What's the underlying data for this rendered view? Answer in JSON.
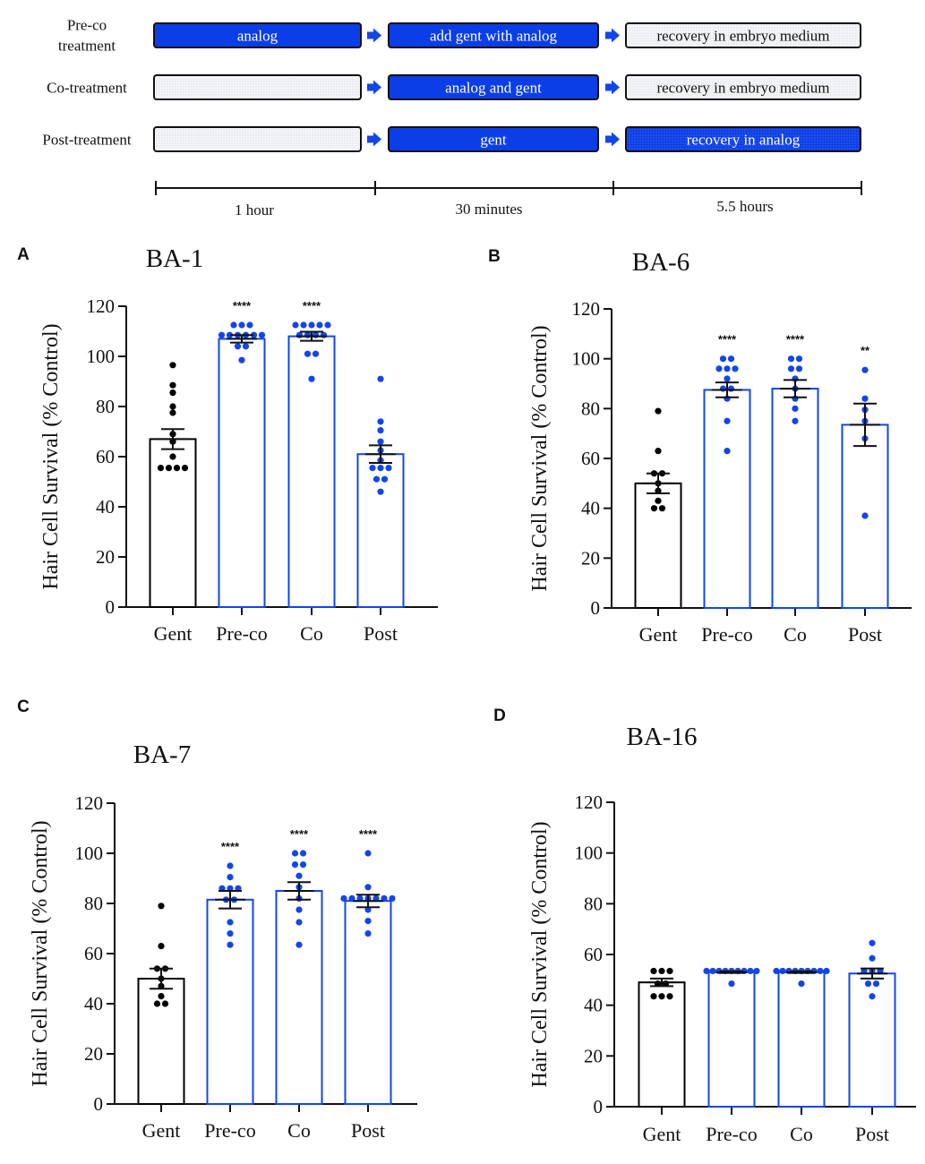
{
  "colors": {
    "blue": "#1246e8",
    "blue_fill": "#0b3ee6",
    "black": "#000000",
    "stipple": "#eef0f4"
  },
  "protocol": {
    "rows": [
      {
        "label_lines": [
          "Pre-co",
          "treatment"
        ],
        "steps": [
          {
            "text": "analog",
            "style": "blue"
          },
          {
            "text": "add gent with analog",
            "style": "blue"
          },
          {
            "text": "recovery in embryo medium",
            "style": "light"
          }
        ]
      },
      {
        "label_lines": [
          "Co-treatment"
        ],
        "steps": [
          {
            "text": "",
            "style": "light"
          },
          {
            "text": "analog and gent",
            "style": "blue"
          },
          {
            "text": "recovery in embryo medium",
            "style": "light"
          }
        ]
      },
      {
        "label_lines": [
          "Post-treatment"
        ],
        "steps": [
          {
            "text": "",
            "style": "light"
          },
          {
            "text": "gent",
            "style": "blue"
          },
          {
            "text": "recovery in analog",
            "style": "dotted-blue"
          }
        ]
      }
    ],
    "timeline": [
      "1 hour",
      "30 minutes",
      "5.5 hours"
    ],
    "arrow_icon": "right-arrow-icon"
  },
  "chart_data": [
    {
      "panel": "A",
      "title": "BA-1",
      "type": "bar",
      "ylabel": "Hair Cell Survival (% Control)",
      "ylim": [
        0,
        120
      ],
      "yticks": [
        0,
        20,
        40,
        60,
        80,
        100,
        120
      ],
      "categories": [
        "Gent",
        "Pre-co",
        "Co",
        "Post"
      ],
      "means": [
        67,
        107,
        108,
        61
      ],
      "sem": [
        4,
        1.5,
        1.8,
        3.5
      ],
      "significance": [
        "",
        "****",
        "****",
        ""
      ],
      "points": [
        [
          96.5,
          88.5,
          85.5,
          80,
          77.5,
          69,
          66,
          60,
          55.5,
          55.5,
          55.5,
          55.5
        ],
        [
          112.5,
          112.5,
          112.5,
          108.5,
          108.5,
          108.5,
          108.5,
          108.5,
          108.5,
          104,
          104,
          98.5
        ],
        [
          112.5,
          112.5,
          112.5,
          112.5,
          112.5,
          108.5,
          108.5,
          108.5,
          108.5,
          101,
          101,
          91
        ],
        [
          91,
          74,
          70.5,
          66,
          62.5,
          58.5,
          55.5,
          55.5,
          55.5,
          51,
          51,
          46
        ]
      ]
    },
    {
      "panel": "B",
      "title": "BA-6",
      "type": "bar",
      "ylabel": "Hair Cell Survival (% Control)",
      "ylim": [
        0,
        120
      ],
      "yticks": [
        0,
        20,
        40,
        60,
        80,
        100,
        120
      ],
      "categories": [
        "Gent",
        "Pre-co",
        "Co",
        "Post"
      ],
      "means": [
        50,
        87.5,
        88,
        73.5
      ],
      "sem": [
        4,
        3,
        3.5,
        8.5
      ],
      "significance": [
        "",
        "****",
        "****",
        "**"
      ],
      "points": [
        [
          79,
          63,
          54,
          54,
          50,
          47,
          43,
          40,
          40
        ],
        [
          100,
          100,
          96,
          96,
          96,
          92,
          88,
          88,
          84,
          75,
          63
        ],
        [
          100,
          100,
          96,
          96,
          92,
          88,
          84,
          80,
          75
        ],
        [
          95.5,
          84,
          79.5,
          75,
          68,
          37
        ]
      ]
    },
    {
      "panel": "C",
      "title": "BA-7",
      "type": "bar",
      "ylabel": "Hair Cell Survival (% Control)",
      "ylim": [
        0,
        120
      ],
      "yticks": [
        0,
        20,
        40,
        60,
        80,
        100,
        120
      ],
      "categories": [
        "Gent",
        "Pre-co",
        "Co",
        "Post"
      ],
      "means": [
        50,
        81.5,
        85,
        81
      ],
      "sem": [
        4,
        3.5,
        3.5,
        2.5
      ],
      "significance": [
        "",
        "****",
        "****",
        "****"
      ],
      "points": [
        [
          79,
          63,
          54,
          54,
          50,
          47,
          43,
          40,
          40
        ],
        [
          95,
          90.5,
          86,
          86,
          86,
          81.5,
          81.5,
          72.5,
          68,
          63.5
        ],
        [
          100,
          100,
          95.5,
          95.5,
          91,
          86.5,
          82,
          77.5,
          72.5,
          63.5
        ],
        [
          100,
          86.5,
          82,
          82,
          82,
          82,
          82,
          82,
          82,
          77.5,
          73,
          68
        ]
      ]
    },
    {
      "panel": "D",
      "title": "BA-16",
      "type": "bar",
      "ylabel": "Hair Cell Survival (% Control)",
      "ylim": [
        0,
        120
      ],
      "yticks": [
        0,
        20,
        40,
        60,
        80,
        100,
        120
      ],
      "categories": [
        "Gent",
        "Pre-co",
        "Co",
        "Post"
      ],
      "means": [
        49,
        53,
        53,
        52.5
      ],
      "sem": [
        1.5,
        0.3,
        0.3,
        2
      ],
      "significance": [
        "",
        "",
        "",
        ""
      ],
      "points": [
        [
          53.5,
          53.5,
          53.5,
          48.5,
          48.5,
          43.5,
          43.5,
          43.5
        ],
        [
          53.5,
          53.5,
          53.5,
          53.5,
          53.5,
          53.5,
          53.5,
          53.5,
          53.5,
          48.5
        ],
        [
          53.5,
          53.5,
          53.5,
          53.5,
          53.5,
          53.5,
          53.5,
          53.5,
          53.5,
          48.5
        ],
        [
          64.5,
          58.5,
          53.5,
          53.5,
          53.5,
          48.5,
          48.5,
          43.5
        ]
      ]
    }
  ]
}
